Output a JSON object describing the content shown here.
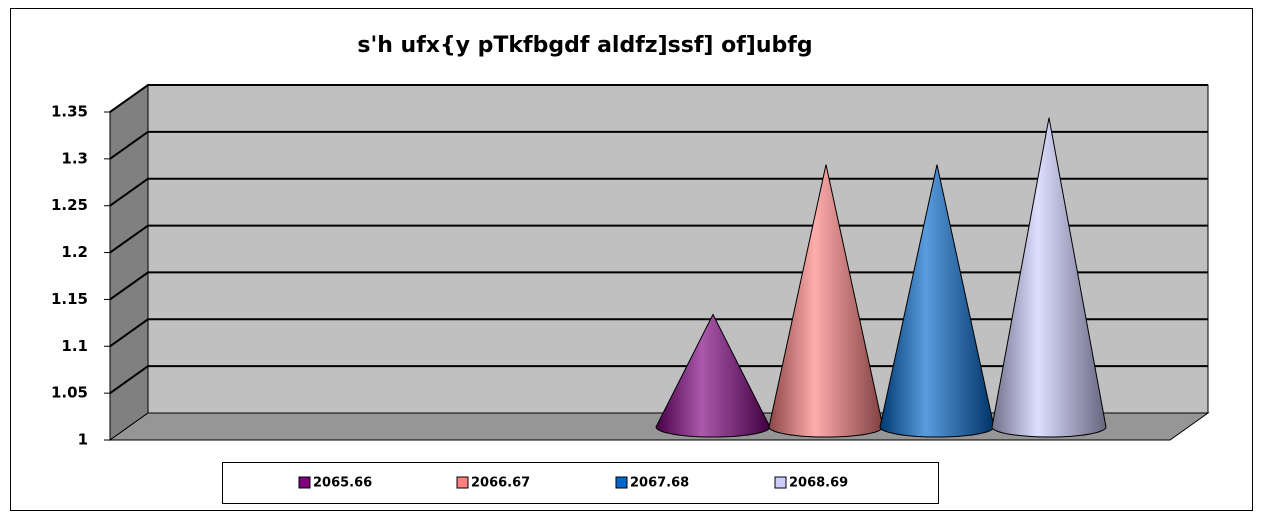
{
  "chart_data": {
    "type": "cone3d",
    "title": "s'h ufx{y pTkfbgdf aldfz]ssf] of]ubfg",
    "series": [
      {
        "name": "2065.66",
        "color": "#800080",
        "values": [
          1.12
        ]
      },
      {
        "name": "2066.67",
        "color": "#ff8080",
        "values": [
          1.28
        ]
      },
      {
        "name": "2067.68",
        "color": "#0066cc",
        "values": [
          1.28
        ]
      },
      {
        "name": "2068.69",
        "color": "#ccccff",
        "values": [
          1.33
        ]
      }
    ],
    "ylim": [
      1,
      1.35
    ],
    "yticks": [
      1,
      1.05,
      1.1,
      1.15,
      1.2,
      1.25,
      1.3,
      1.35
    ],
    "grid": true,
    "legend": "bottom"
  }
}
